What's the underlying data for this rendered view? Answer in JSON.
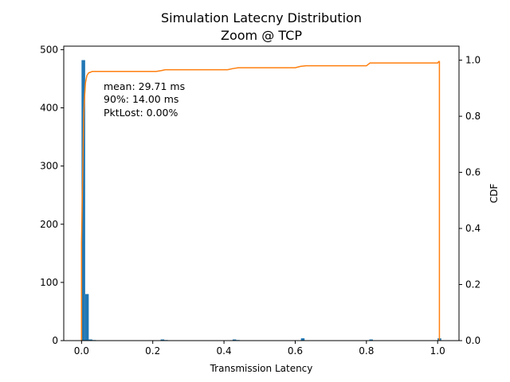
{
  "chart_data": {
    "type": "bar",
    "title": "Simulation Latecny Distribution",
    "subtitle": "Zoom @ TCP",
    "xlabel": "Transmission Latency",
    "ylabel": "",
    "y2label": "CDF",
    "xlim": [
      -0.05,
      1.06
    ],
    "ylim": [
      0,
      506
    ],
    "y2lim": [
      0,
      1.05
    ],
    "xticks": [
      "0.0",
      "0.2",
      "0.4",
      "0.6",
      "0.8",
      "1.0"
    ],
    "xtick_values": [
      0,
      0.2,
      0.4,
      0.6,
      0.8,
      1.0
    ],
    "yticks": [
      "0",
      "100",
      "200",
      "300",
      "400",
      "500"
    ],
    "ytick_values": [
      0,
      100,
      200,
      300,
      400,
      500
    ],
    "y2ticks": [
      "0.0",
      "0.2",
      "0.4",
      "0.6",
      "0.8",
      "1.0"
    ],
    "y2tick_values": [
      0,
      0.2,
      0.4,
      0.6,
      0.8,
      1.0
    ],
    "histogram": {
      "color": "#1f77b4",
      "bin_width": 0.0101,
      "bins": [
        {
          "x": 0.0,
          "count": 482
        },
        {
          "x": 0.0101,
          "count": 80
        },
        {
          "x": 0.0202,
          "count": 2
        },
        {
          "x": 0.0303,
          "count": 1
        },
        {
          "x": 0.2222,
          "count": 2
        },
        {
          "x": 0.2323,
          "count": 1
        },
        {
          "x": 0.4242,
          "count": 2
        },
        {
          "x": 0.4343,
          "count": 1
        },
        {
          "x": 0.6162,
          "count": 4
        },
        {
          "x": 0.8081,
          "count": 2
        },
        {
          "x": 1.0,
          "count": 4
        }
      ]
    },
    "cdf": {
      "color": "#ff7f0e",
      "x": [
        0.0,
        0.0,
        0.003,
        0.006,
        0.008,
        0.011,
        0.015,
        0.02,
        0.025,
        0.03,
        0.21,
        0.225,
        0.235,
        0.41,
        0.425,
        0.44,
        0.6,
        0.615,
        0.63,
        0.8,
        0.81,
        0.99,
        1.0,
        1.003,
        1.005,
        1.005
      ],
      "y": [
        0.0,
        0.35,
        0.58,
        0.8,
        0.86,
        0.92,
        0.945,
        0.955,
        0.957,
        0.96,
        0.96,
        0.963,
        0.966,
        0.966,
        0.97,
        0.973,
        0.973,
        0.978,
        0.98,
        0.98,
        0.99,
        0.99,
        0.99,
        0.995,
        0.995,
        0.0
      ]
    },
    "annotations": [
      "mean: 29.71 ms",
      "90%: 14.00 ms",
      "PktLost: 0.00%"
    ],
    "grid": false,
    "legend": "none"
  }
}
